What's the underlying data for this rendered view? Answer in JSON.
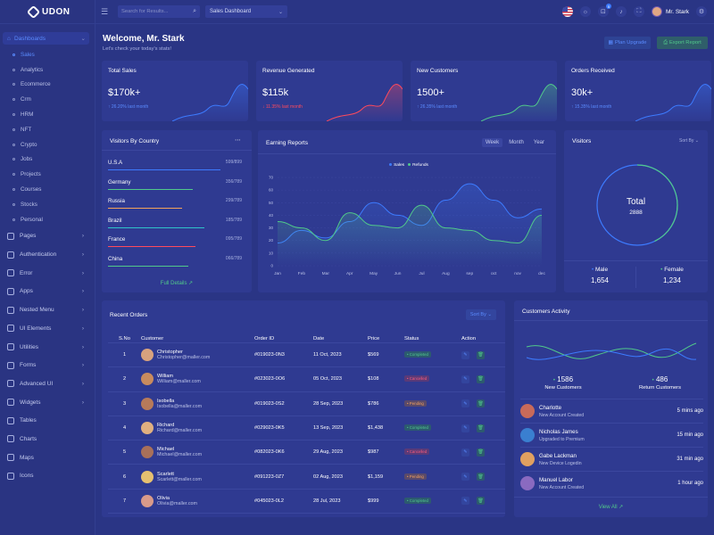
{
  "brand": "UDON",
  "sidebar": {
    "head": "Dashboards",
    "sub": [
      "Sales",
      "Analytics",
      "Ecommerce",
      "Crm",
      "HRM",
      "NFT",
      "Crypto",
      "Jobs",
      "Projects",
      "Courses",
      "Stocks",
      "Personal"
    ],
    "menu": [
      "Pages",
      "Authentication",
      "Error",
      "Apps",
      "Nested Menu",
      "UI Elements",
      "Utilities",
      "Forms",
      "Advanced UI",
      "Widgets",
      "Tables",
      "Charts",
      "Maps",
      "Icons"
    ]
  },
  "topbar": {
    "search_placeholder": "Search for Results...",
    "dropdown": "Sales Dashboard",
    "cart_count": "5",
    "user": "Mr. Stark"
  },
  "welcome": {
    "title": "Welcome, Mr. Stark",
    "sub": "Let's check your today's stats!",
    "plan": "Plan Upgrade",
    "export": "Export Report"
  },
  "stats": [
    {
      "title": "Total Sales",
      "value": "$170k+",
      "delta": "26.20% last month",
      "dir": "up",
      "color": "#3d7bff"
    },
    {
      "title": "Revenue Generated",
      "value": "$115k",
      "delta": "11.35% last month",
      "dir": "down",
      "color": "#ff4a5c"
    },
    {
      "title": "New Customers",
      "value": "1500+",
      "delta": "26.35% last month",
      "dir": "up",
      "color": "#51c98a"
    },
    {
      "title": "Orders Received",
      "value": "30k+",
      "delta": "15.35% last month",
      "dir": "up",
      "color": "#3d7bff"
    }
  ],
  "visitors_country": {
    "title": "Visitors By Country",
    "rows": [
      {
        "name": "U.S.A",
        "count": "599/899",
        "pct": 0.84,
        "color": "#3d7bff"
      },
      {
        "name": "Germany",
        "count": "356/789",
        "pct": 0.63,
        "color": "#51c98a"
      },
      {
        "name": "Russia",
        "count": "299/789",
        "pct": 0.55,
        "color": "#f4a25b"
      },
      {
        "name": "Brazil",
        "count": "185/789",
        "pct": 0.72,
        "color": "#2fc4c9"
      },
      {
        "name": "France",
        "count": "095/789",
        "pct": 0.65,
        "color": "#ff4a5c"
      },
      {
        "name": "China",
        "count": "066/789",
        "pct": 0.6,
        "color": "#51c98a"
      }
    ],
    "link": "Full Details"
  },
  "earning": {
    "title": "Earning Reports",
    "tabs": [
      "Week",
      "Month",
      "Year"
    ],
    "active_tab": "Week"
  },
  "chart_data": {
    "type": "area",
    "title": "Earning Reports",
    "categories": [
      "Jan",
      "Feb",
      "Mar",
      "Apr",
      "May",
      "Jun",
      "Jul",
      "Aug",
      "sep",
      "oct",
      "nov",
      "dec"
    ],
    "yticks": [
      "0",
      "10",
      "20",
      "30",
      "40",
      "50",
      "60",
      "70"
    ],
    "ylim": [
      0,
      70
    ],
    "series": [
      {
        "name": "Sales",
        "color": "#3d7bff",
        "values": [
          18,
          28,
          22,
          35,
          50,
          40,
          32,
          52,
          65,
          52,
          38,
          45
        ]
      },
      {
        "name": "Refunds",
        "color": "#51c98a",
        "values": [
          35,
          30,
          20,
          42,
          32,
          30,
          48,
          30,
          28,
          20,
          18,
          40
        ]
      }
    ]
  },
  "visitors": {
    "title": "Visitors",
    "sort": "Sort By",
    "total_label": "Total",
    "total": "2888",
    "male_label": "Male",
    "male": "1,654",
    "female_label": "Female",
    "female": "1,234",
    "male_share": 0.572
  },
  "orders": {
    "title": "Recent Orders",
    "sort": "Sort By",
    "headers": [
      "S.No",
      "Customer",
      "Order ID",
      "Date",
      "Price",
      "Status",
      "Action"
    ],
    "rows": [
      {
        "no": "1",
        "name": "Christopher",
        "email": "Christopher@maller.com",
        "id": "#019023-0N3",
        "date": "11 Oct, 2023",
        "price": "$569",
        "status": "Completed",
        "sc": "ok"
      },
      {
        "no": "2",
        "name": "William",
        "email": "William@maller.com",
        "id": "#023023-0O6",
        "date": "05 Oct, 2023",
        "price": "$108",
        "status": "Cancelled",
        "sc": "ca"
      },
      {
        "no": "3",
        "name": "Isobella",
        "email": "Isobella@maller.com",
        "id": "#019023-0S2",
        "date": "28 Sep, 2023",
        "price": "$786",
        "status": "Pending",
        "sc": "pe"
      },
      {
        "no": "4",
        "name": "Richard",
        "email": "Richard@maller.com",
        "id": "#029023-0K5",
        "date": "13 Sep, 2023",
        "price": "$1,438",
        "status": "Completed",
        "sc": "ok"
      },
      {
        "no": "5",
        "name": "Michael",
        "email": "Michael@maller.com",
        "id": "#082023-0K6",
        "date": "29 Aug, 2023",
        "price": "$987",
        "status": "Cancelled",
        "sc": "ca"
      },
      {
        "no": "6",
        "name": "Scarlett",
        "email": "Scarlett@maller.com",
        "id": "#091223-0Z7",
        "date": "02 Aug, 2023",
        "price": "$1,159",
        "status": "Pending",
        "sc": "pe"
      },
      {
        "no": "7",
        "name": "Olivia",
        "email": "Olivia@maller.com",
        "id": "#045023-0L2",
        "date": "28 Jul, 2023",
        "price": "$999",
        "status": "Completed",
        "sc": "ok"
      }
    ]
  },
  "customers": {
    "title": "Customers Activity",
    "new_value": "1586",
    "new_label": "New Customers",
    "return_value": "486",
    "return_label": "Return Customers",
    "items": [
      {
        "name": "Charlotte",
        "desc": "New Account Created",
        "time": "5 mins ago"
      },
      {
        "name": "Nicholas James",
        "desc": "Upgraded to Premium",
        "time": "15 min ago"
      },
      {
        "name": "Gabe Lackman",
        "desc": "New Device Logedin",
        "time": "31 min ago"
      },
      {
        "name": "Manuel Labor",
        "desc": "New Account Created",
        "time": "1 hour ago"
      }
    ],
    "link": "View All"
  }
}
